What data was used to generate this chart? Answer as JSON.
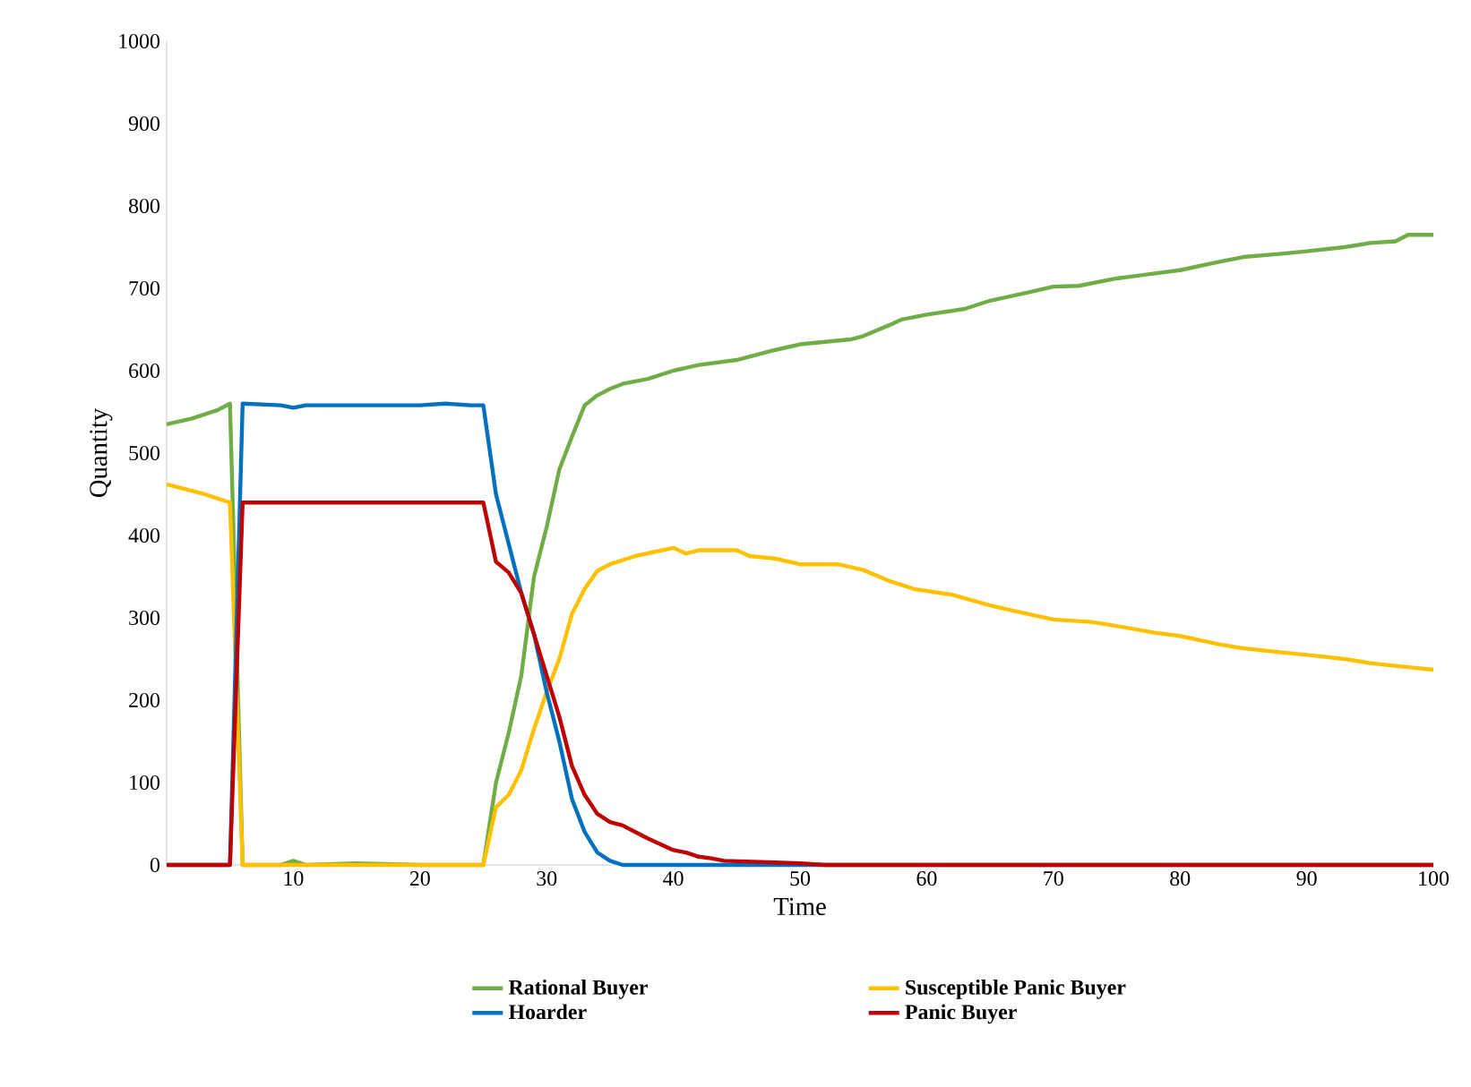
{
  "chart_data": {
    "type": "line",
    "xlabel": "Time",
    "ylabel": "Quantity",
    "xlim": [
      0,
      100
    ],
    "ylim": [
      0,
      1000
    ],
    "xticks": [
      10,
      20,
      30,
      40,
      50,
      60,
      70,
      80,
      90,
      100
    ],
    "yticks": [
      0,
      100,
      200,
      300,
      400,
      500,
      600,
      700,
      800,
      900,
      1000
    ],
    "legend": "bottom",
    "marker": "none",
    "line_style": "solid",
    "series": [
      {
        "name": "Rational Buyer",
        "color": "#70ad47",
        "x": [
          0,
          2,
          4,
          5,
          6,
          9,
          10,
          11,
          15,
          20,
          25,
          26,
          27,
          28,
          29,
          30,
          31,
          32,
          33,
          34,
          35,
          36,
          38,
          40,
          42,
          45,
          48,
          50,
          52,
          54,
          55,
          57,
          58,
          60,
          63,
          65,
          68,
          70,
          72,
          75,
          78,
          80,
          83,
          85,
          88,
          90,
          93,
          95,
          97,
          98,
          100
        ],
        "values": [
          535,
          542,
          552,
          560,
          0,
          0,
          5,
          0,
          2,
          0,
          0,
          100,
          160,
          230,
          350,
          410,
          480,
          520,
          558,
          570,
          578,
          584,
          590,
          600,
          607,
          613,
          625,
          632,
          635,
          638,
          642,
          655,
          662,
          668,
          675,
          685,
          695,
          702,
          703,
          712,
          718,
          722,
          732,
          738,
          742,
          745,
          750,
          755,
          757,
          765,
          765
        ]
      },
      {
        "name": "Susceptible Panic Buyer",
        "color": "#ffc000",
        "x": [
          0,
          3,
          5,
          6,
          25,
          26,
          27,
          28,
          29,
          30,
          31,
          32,
          33,
          34,
          35,
          37,
          40,
          41,
          42,
          45,
          46,
          48,
          50,
          53,
          55,
          57,
          59,
          62,
          65,
          67,
          70,
          73,
          75,
          78,
          80,
          83,
          85,
          88,
          90,
          93,
          95,
          98,
          100
        ],
        "values": [
          462,
          450,
          440,
          0,
          0,
          70,
          85,
          115,
          165,
          210,
          250,
          305,
          335,
          357,
          365,
          375,
          385,
          378,
          382,
          382,
          375,
          372,
          365,
          365,
          358,
          345,
          335,
          328,
          315,
          308,
          298,
          295,
          290,
          282,
          278,
          268,
          263,
          258,
          255,
          250,
          245,
          240,
          237
        ]
      },
      {
        "name": "Hoarder",
        "color": "#0070c0",
        "x": [
          0,
          5,
          6,
          9,
          10,
          11,
          15,
          20,
          22,
          24,
          25,
          26,
          27,
          28,
          29,
          30,
          31,
          32,
          33,
          34,
          35,
          36,
          100
        ],
        "values": [
          0,
          0,
          560,
          558,
          555,
          558,
          558,
          558,
          560,
          558,
          558,
          450,
          390,
          330,
          280,
          210,
          150,
          80,
          40,
          15,
          5,
          0,
          0
        ]
      },
      {
        "name": "Panic Buyer",
        "color": "#c00000",
        "x": [
          0,
          5,
          6,
          25,
          26,
          27,
          28,
          29,
          30,
          31,
          32,
          33,
          34,
          35,
          36,
          37,
          38,
          39,
          40,
          41,
          42,
          43,
          44,
          46,
          48,
          50,
          52,
          100
        ],
        "values": [
          0,
          0,
          440,
          440,
          368,
          355,
          330,
          280,
          230,
          180,
          120,
          85,
          62,
          52,
          48,
          40,
          32,
          25,
          18,
          15,
          10,
          8,
          5,
          4,
          3,
          2,
          0,
          0
        ]
      }
    ]
  }
}
